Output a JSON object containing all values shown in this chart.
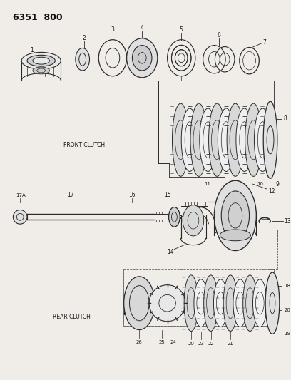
{
  "title": "6351  800",
  "bg_color": "#f0ede8",
  "line_color": "#2a2a2a",
  "text_color": "#1a1a1a",
  "front_clutch_label": "FRONT CLUTCH",
  "rear_clutch_label": "REAR CLUTCH",
  "fig_w": 4.08,
  "fig_h": 5.33,
  "dpi": 100
}
